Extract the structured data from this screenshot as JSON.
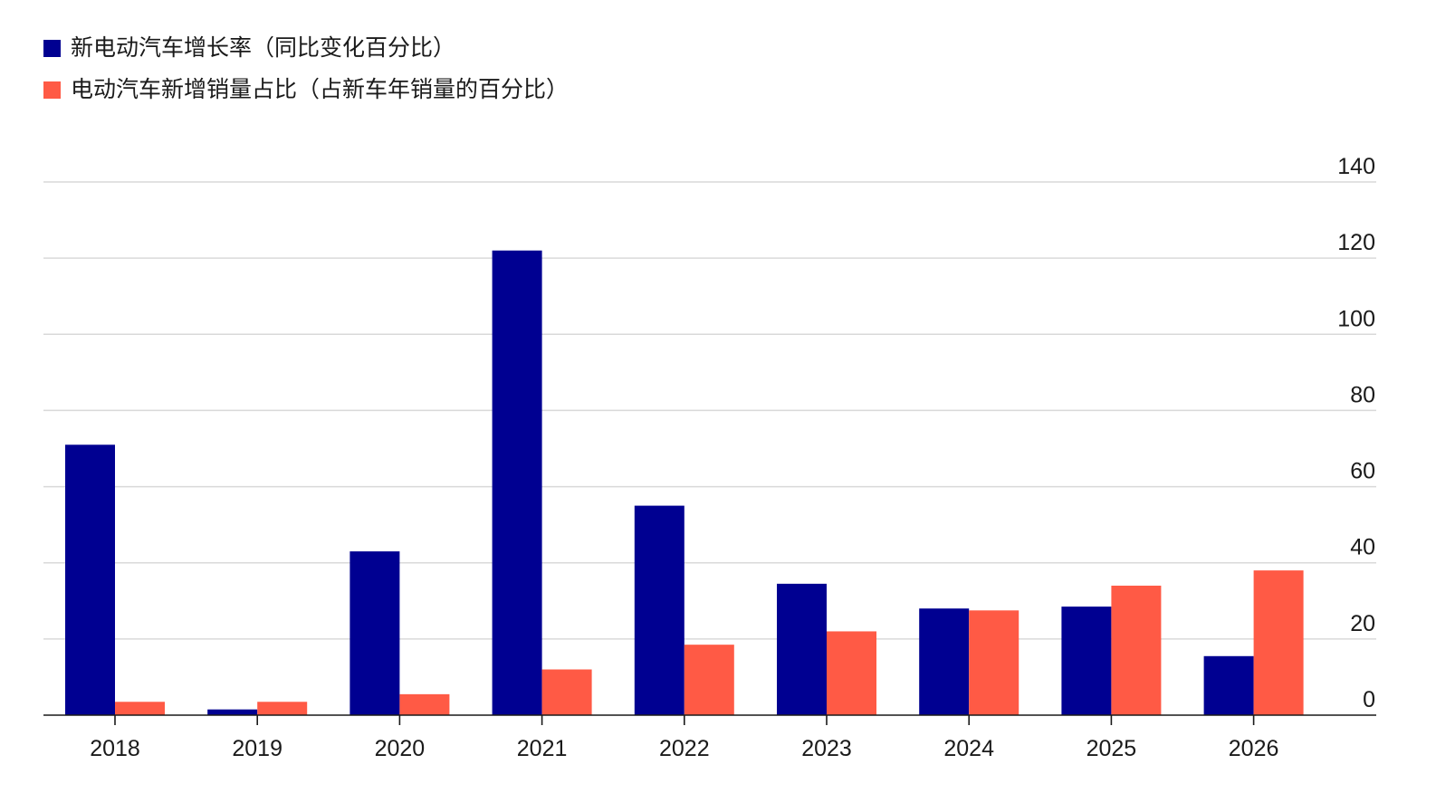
{
  "chart_data": {
    "type": "bar",
    "categories": [
      "2018",
      "2019",
      "2020",
      "2021",
      "2022",
      "2023",
      "2024",
      "2025",
      "2026"
    ],
    "series": [
      {
        "name": "新电动汽车增长率（同比变化百分比）",
        "color": "#000091",
        "values": [
          71,
          1.5,
          43,
          122,
          55,
          34.5,
          28,
          28.5,
          15.5
        ]
      },
      {
        "name": "电动汽车新增销量占比（占新车年销量的百分比）",
        "color": "#ff5a45",
        "values": [
          3.5,
          3.5,
          5.5,
          12,
          18.5,
          22,
          27.5,
          34,
          38
        ]
      }
    ],
    "y_ticks": [
      "0",
      "20",
      "40",
      "60",
      "80",
      "100",
      "120",
      "140"
    ],
    "ylim": [
      0,
      140
    ],
    "grid": true,
    "legend_position": "top-left",
    "y_axis_side": "right",
    "title": "",
    "xlabel": "",
    "ylabel": ""
  }
}
